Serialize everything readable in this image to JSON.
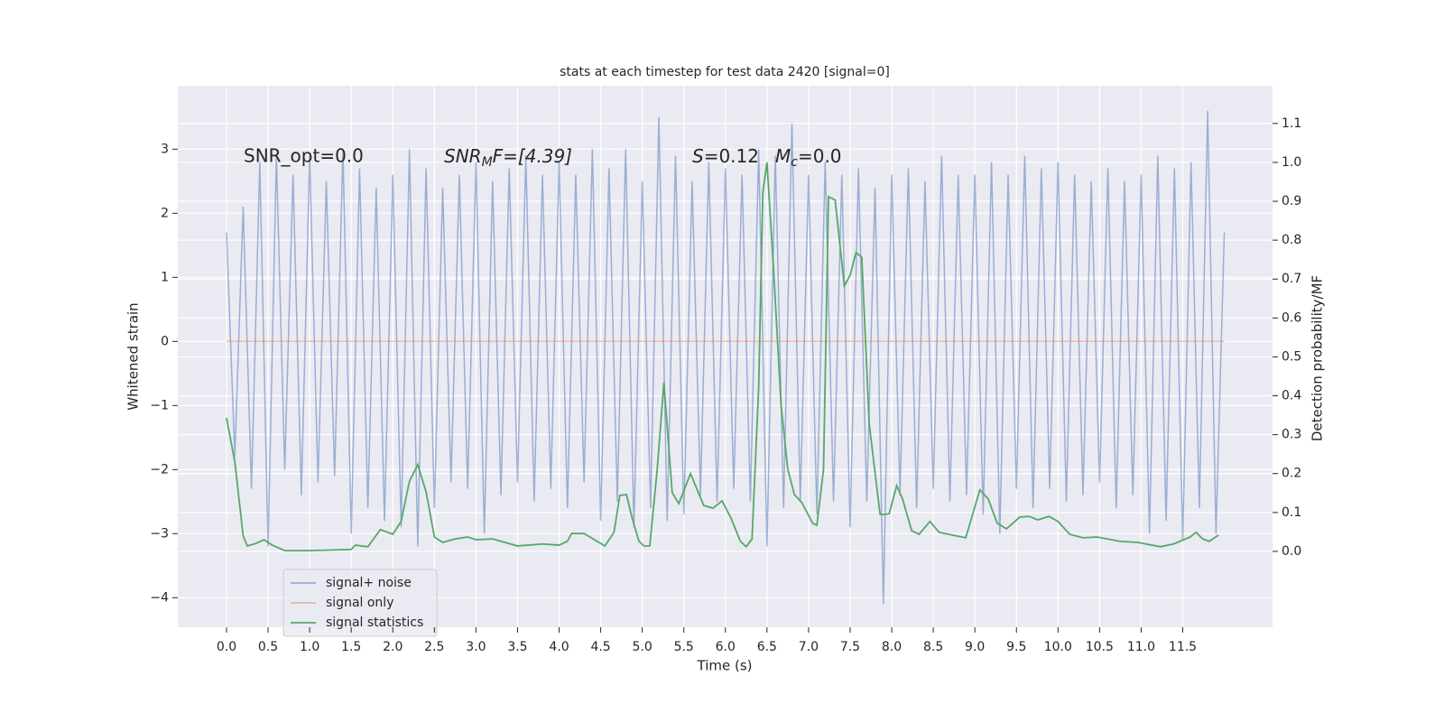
{
  "chart_data": {
    "type": "line",
    "title": "stats at each timestep for test data 2420 [signal=0]",
    "xlabel": "Time (s)",
    "ylabel": "Whitened strain",
    "y2label": "Detection probability/MF",
    "annotations": [
      "SNR_opt=0.0",
      [
        "SNR",
        "M",
        "F=[4.39]"
      ],
      [
        "S",
        "=0.12"
      ],
      [
        "M",
        "c",
        "=0.0"
      ]
    ],
    "xlim": [
      -0.586,
      12.58
    ],
    "ylim": [
      -4.46,
      3.99
    ],
    "y2lim": [
      -0.195,
      1.197
    ],
    "xticks": [
      {
        "value": 0,
        "label": "0.0"
      },
      0.5,
      {
        "value": 1,
        "label": "1.0"
      },
      1.5,
      {
        "value": 2,
        "label": "2.0"
      },
      2.5,
      {
        "value": 3,
        "label": "3.0"
      },
      3.5,
      {
        "value": 4,
        "label": "4.0"
      },
      4.5,
      {
        "value": 5,
        "label": "5.0"
      },
      5.5,
      {
        "value": 6,
        "label": "6.0"
      },
      6.5,
      {
        "value": 7,
        "label": "7.0"
      },
      7.5,
      {
        "value": 8,
        "label": "8.0"
      },
      8.5,
      {
        "value": 9,
        "label": "9.0"
      },
      9.5,
      {
        "value": 10,
        "label": "10.0"
      },
      10.5,
      {
        "value": 11,
        "label": "11.0"
      },
      11.5
    ],
    "yticks": [
      {
        "value": -4,
        "label": "−4"
      },
      {
        "value": -3,
        "label": "−3"
      },
      {
        "value": -2,
        "label": "−2"
      },
      {
        "value": -1,
        "label": "−1"
      },
      0,
      1,
      2,
      3
    ],
    "y2ticks": [
      {
        "value": 0,
        "label": "0.0"
      },
      0.1,
      0.2,
      0.3,
      0.4,
      0.5,
      0.6,
      0.7,
      0.8,
      0.9,
      {
        "value": 1,
        "label": "1.0"
      },
      1.1
    ],
    "grid": true,
    "legend": "lower left",
    "series": [
      {
        "name": "signal+ noise",
        "color": "#4c72b0",
        "opacity": 0.5,
        "axis": "y",
        "x": [
          0,
          0.1,
          0.2,
          0.3,
          0.4,
          0.5,
          0.6,
          0.7,
          0.8,
          0.9,
          1,
          1.1,
          1.2,
          1.3,
          1.4,
          1.5,
          1.6,
          1.7,
          1.8,
          1.9,
          2,
          2.1,
          2.2,
          2.3,
          2.4,
          2.5,
          2.6,
          2.7,
          2.8,
          2.9,
          3,
          3.1,
          3.2,
          3.3,
          3.4,
          3.5,
          3.6,
          3.7,
          3.8,
          3.9,
          4,
          4.1,
          4.2,
          4.3,
          4.4,
          4.5,
          4.6,
          4.7,
          4.8,
          4.9,
          5,
          5.1,
          5.2,
          5.3,
          5.4,
          5.5,
          5.6,
          5.7,
          5.8,
          5.9,
          6,
          6.1,
          6.2,
          6.3,
          6.4,
          6.5,
          6.6,
          6.7,
          6.8,
          6.9,
          7,
          7.1,
          7.2,
          7.3,
          7.4,
          7.5,
          7.6,
          7.7,
          7.8,
          7.9,
          8,
          8.1,
          8.2,
          8.3,
          8.4,
          8.5,
          8.6,
          8.7,
          8.8,
          8.9,
          9,
          9.1,
          9.2,
          9.3,
          9.4,
          9.5,
          9.6,
          9.7,
          9.8,
          9.9,
          10,
          10.1,
          10.2,
          10.3,
          10.4,
          10.5,
          10.6,
          10.7,
          10.8,
          10.9,
          11,
          11.1,
          11.2,
          11.3,
          11.4,
          11.5,
          11.6,
          11.7,
          11.8,
          11.9,
          12
        ],
        "values": [
          1.7,
          -1.8,
          2.1,
          -2.3,
          2.8,
          -3.2,
          2.9,
          -2.0,
          2.6,
          -2.4,
          2.9,
          -2.2,
          2.5,
          -2.1,
          3.0,
          -3.0,
          2.7,
          -2.6,
          2.4,
          -2.8,
          2.6,
          -2.9,
          3.0,
          -3.2,
          2.7,
          -2.6,
          2.4,
          -2.2,
          2.6,
          -2.3,
          2.8,
          -3.0,
          2.5,
          -2.4,
          2.7,
          -2.2,
          2.9,
          -2.5,
          2.6,
          -2.3,
          2.8,
          -2.6,
          2.6,
          -2.2,
          3.0,
          -2.8,
          2.7,
          -2.5,
          3.0,
          -2.9,
          2.5,
          -2.6,
          3.5,
          -2.8,
          2.9,
          -2.7,
          2.5,
          -2.4,
          2.8,
          -2.5,
          2.7,
          -2.3,
          2.6,
          -2.5,
          3.0,
          -3.2,
          2.9,
          -2.6,
          3.4,
          -2.5,
          2.6,
          -2.7,
          2.8,
          -2.5,
          2.6,
          -2.9,
          2.7,
          -2.5,
          2.4,
          -4.1,
          2.6,
          -2.4,
          2.7,
          -2.6,
          2.5,
          -2.3,
          2.9,
          -2.5,
          2.6,
          -2.4,
          2.6,
          -2.7,
          2.8,
          -3.0,
          2.6,
          -2.3,
          2.9,
          -2.6,
          2.7,
          -2.3,
          2.8,
          -2.5,
          2.6,
          -2.4,
          2.5,
          -2.2,
          2.7,
          -2.6,
          2.5,
          -2.4,
          2.6,
          -3.0,
          2.9,
          -2.8,
          2.7,
          -3.1,
          2.8,
          -2.6,
          3.6,
          -3.0,
          1.7
        ]
      },
      {
        "name": "signal only",
        "color": "#dd8452",
        "opacity": 0.5,
        "axis": "y",
        "x": [
          0,
          12
        ],
        "values": [
          0,
          0
        ]
      },
      {
        "name": "signal statistics",
        "color": "#55a868",
        "opacity": 1,
        "axis": "y2",
        "x": [
          0,
          0.1,
          0.2,
          0.25,
          0.35,
          0.45,
          0.55,
          0.7,
          1.0,
          1.5,
          1.55,
          1.7,
          1.85,
          2.0,
          2.1,
          2.2,
          2.3,
          2.4,
          2.5,
          2.6,
          2.75,
          2.9,
          3.0,
          3.2,
          3.5,
          3.8,
          4.0,
          4.1,
          4.15,
          4.3,
          4.55,
          4.66,
          4.73,
          4.81,
          4.88,
          4.96,
          5.02,
          5.09,
          5.18,
          5.26,
          5.36,
          5.44,
          5.58,
          5.74,
          5.85,
          5.96,
          6.07,
          6.18,
          6.25,
          6.32,
          6.4,
          6.45,
          6.5,
          6.58,
          6.67,
          6.75,
          6.83,
          6.92,
          7.05,
          7.1,
          7.18,
          7.24,
          7.32,
          7.43,
          7.5,
          7.57,
          7.64,
          7.73,
          7.86,
          7.92,
          7.97,
          8.06,
          8.13,
          8.24,
          8.33,
          8.46,
          8.57,
          8.73,
          8.89,
          9.06,
          9.16,
          9.27,
          9.38,
          9.54,
          9.65,
          9.76,
          9.89,
          10.0,
          10.14,
          10.3,
          10.47,
          10.74,
          10.96,
          11.23,
          11.39,
          11.59,
          11.66,
          11.74,
          11.82,
          11.93
        ],
        "values": [
          0.343,
          0.23,
          0.04,
          0.014,
          0.02,
          0.03,
          0.016,
          0.002,
          0.002,
          0.005,
          0.016,
          0.012,
          0.056,
          0.044,
          0.077,
          0.18,
          0.223,
          0.153,
          0.037,
          0.023,
          0.032,
          0.037,
          0.03,
          0.032,
          0.014,
          0.019,
          0.016,
          0.026,
          0.046,
          0.046,
          0.014,
          0.049,
          0.144,
          0.146,
          0.084,
          0.026,
          0.014,
          0.014,
          0.211,
          0.434,
          0.151,
          0.123,
          0.2,
          0.118,
          0.111,
          0.13,
          0.084,
          0.026,
          0.012,
          0.032,
          0.42,
          0.923,
          1.0,
          0.722,
          0.374,
          0.211,
          0.146,
          0.125,
          0.072,
          0.067,
          0.211,
          0.912,
          0.903,
          0.682,
          0.71,
          0.768,
          0.756,
          0.327,
          0.095,
          0.095,
          0.097,
          0.169,
          0.135,
          0.053,
          0.044,
          0.077,
          0.049,
          0.042,
          0.035,
          0.158,
          0.135,
          0.072,
          0.058,
          0.088,
          0.09,
          0.081,
          0.09,
          0.077,
          0.044,
          0.035,
          0.037,
          0.026,
          0.023,
          0.012,
          0.019,
          0.037,
          0.049,
          0.032,
          0.026,
          0.042
        ]
      }
    ]
  }
}
